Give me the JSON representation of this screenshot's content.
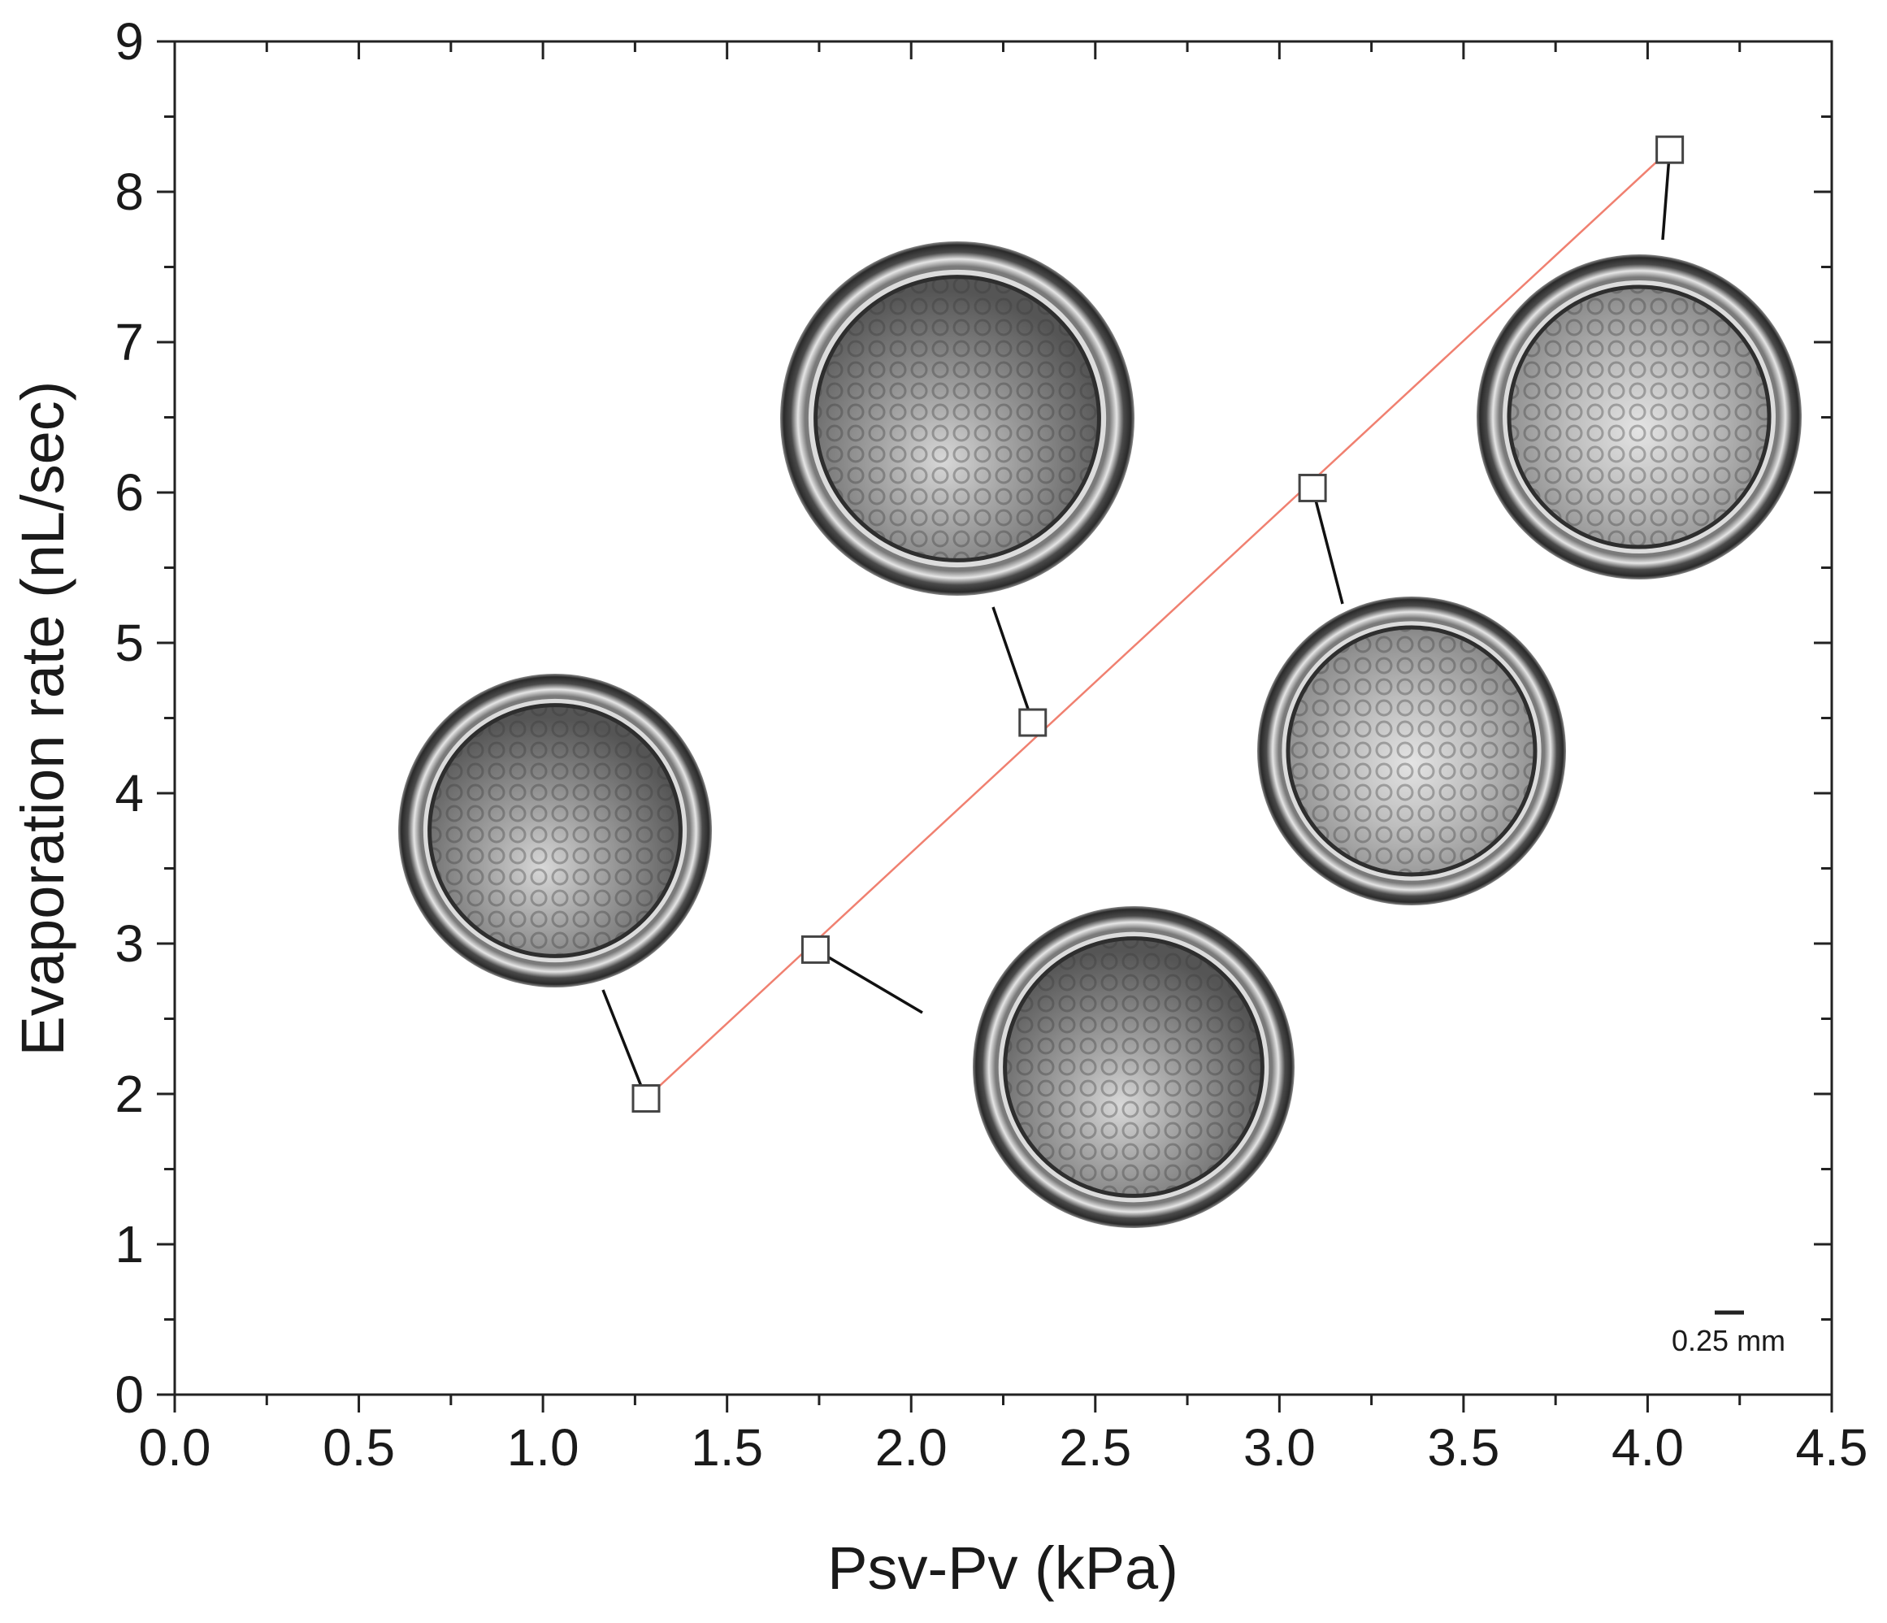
{
  "chart_data": {
    "type": "scatter",
    "xlabel": "Psv-Pv (kPa)",
    "ylabel": "Evaporation rate (nL/sec)",
    "xlim": [
      0.0,
      4.5
    ],
    "ylim": [
      0,
      9
    ],
    "x_ticks": [
      "0.0",
      "0.5",
      "1.0",
      "1.5",
      "2.0",
      "2.5",
      "3.0",
      "3.5",
      "4.0",
      "4.5"
    ],
    "y_ticks": [
      "0",
      "1",
      "2",
      "3",
      "4",
      "5",
      "6",
      "7",
      "8",
      "9"
    ],
    "grid": false,
    "series": [
      {
        "marker": "open-square",
        "points": [
          {
            "x": 1.28,
            "y": 1.97
          },
          {
            "x": 1.74,
            "y": 2.96
          },
          {
            "x": 2.33,
            "y": 4.47
          },
          {
            "x": 3.09,
            "y": 6.03
          },
          {
            "x": 4.06,
            "y": 8.28
          }
        ]
      }
    ],
    "fit_line": {
      "color": "#f08070",
      "x": [
        1.28,
        4.06
      ],
      "y": [
        1.97,
        8.28
      ]
    },
    "insets": [
      {
        "image": "dried-droplet-photo",
        "attached_to_point": 0
      },
      {
        "image": "dried-droplet-photo",
        "attached_to_point": 1
      },
      {
        "image": "dried-droplet-photo",
        "attached_to_point": 2
      },
      {
        "image": "dried-droplet-photo",
        "attached_to_point": 3
      },
      {
        "image": "dried-droplet-photo",
        "attached_to_point": 4
      }
    ],
    "scale_bar_label": "0.25 mm"
  }
}
